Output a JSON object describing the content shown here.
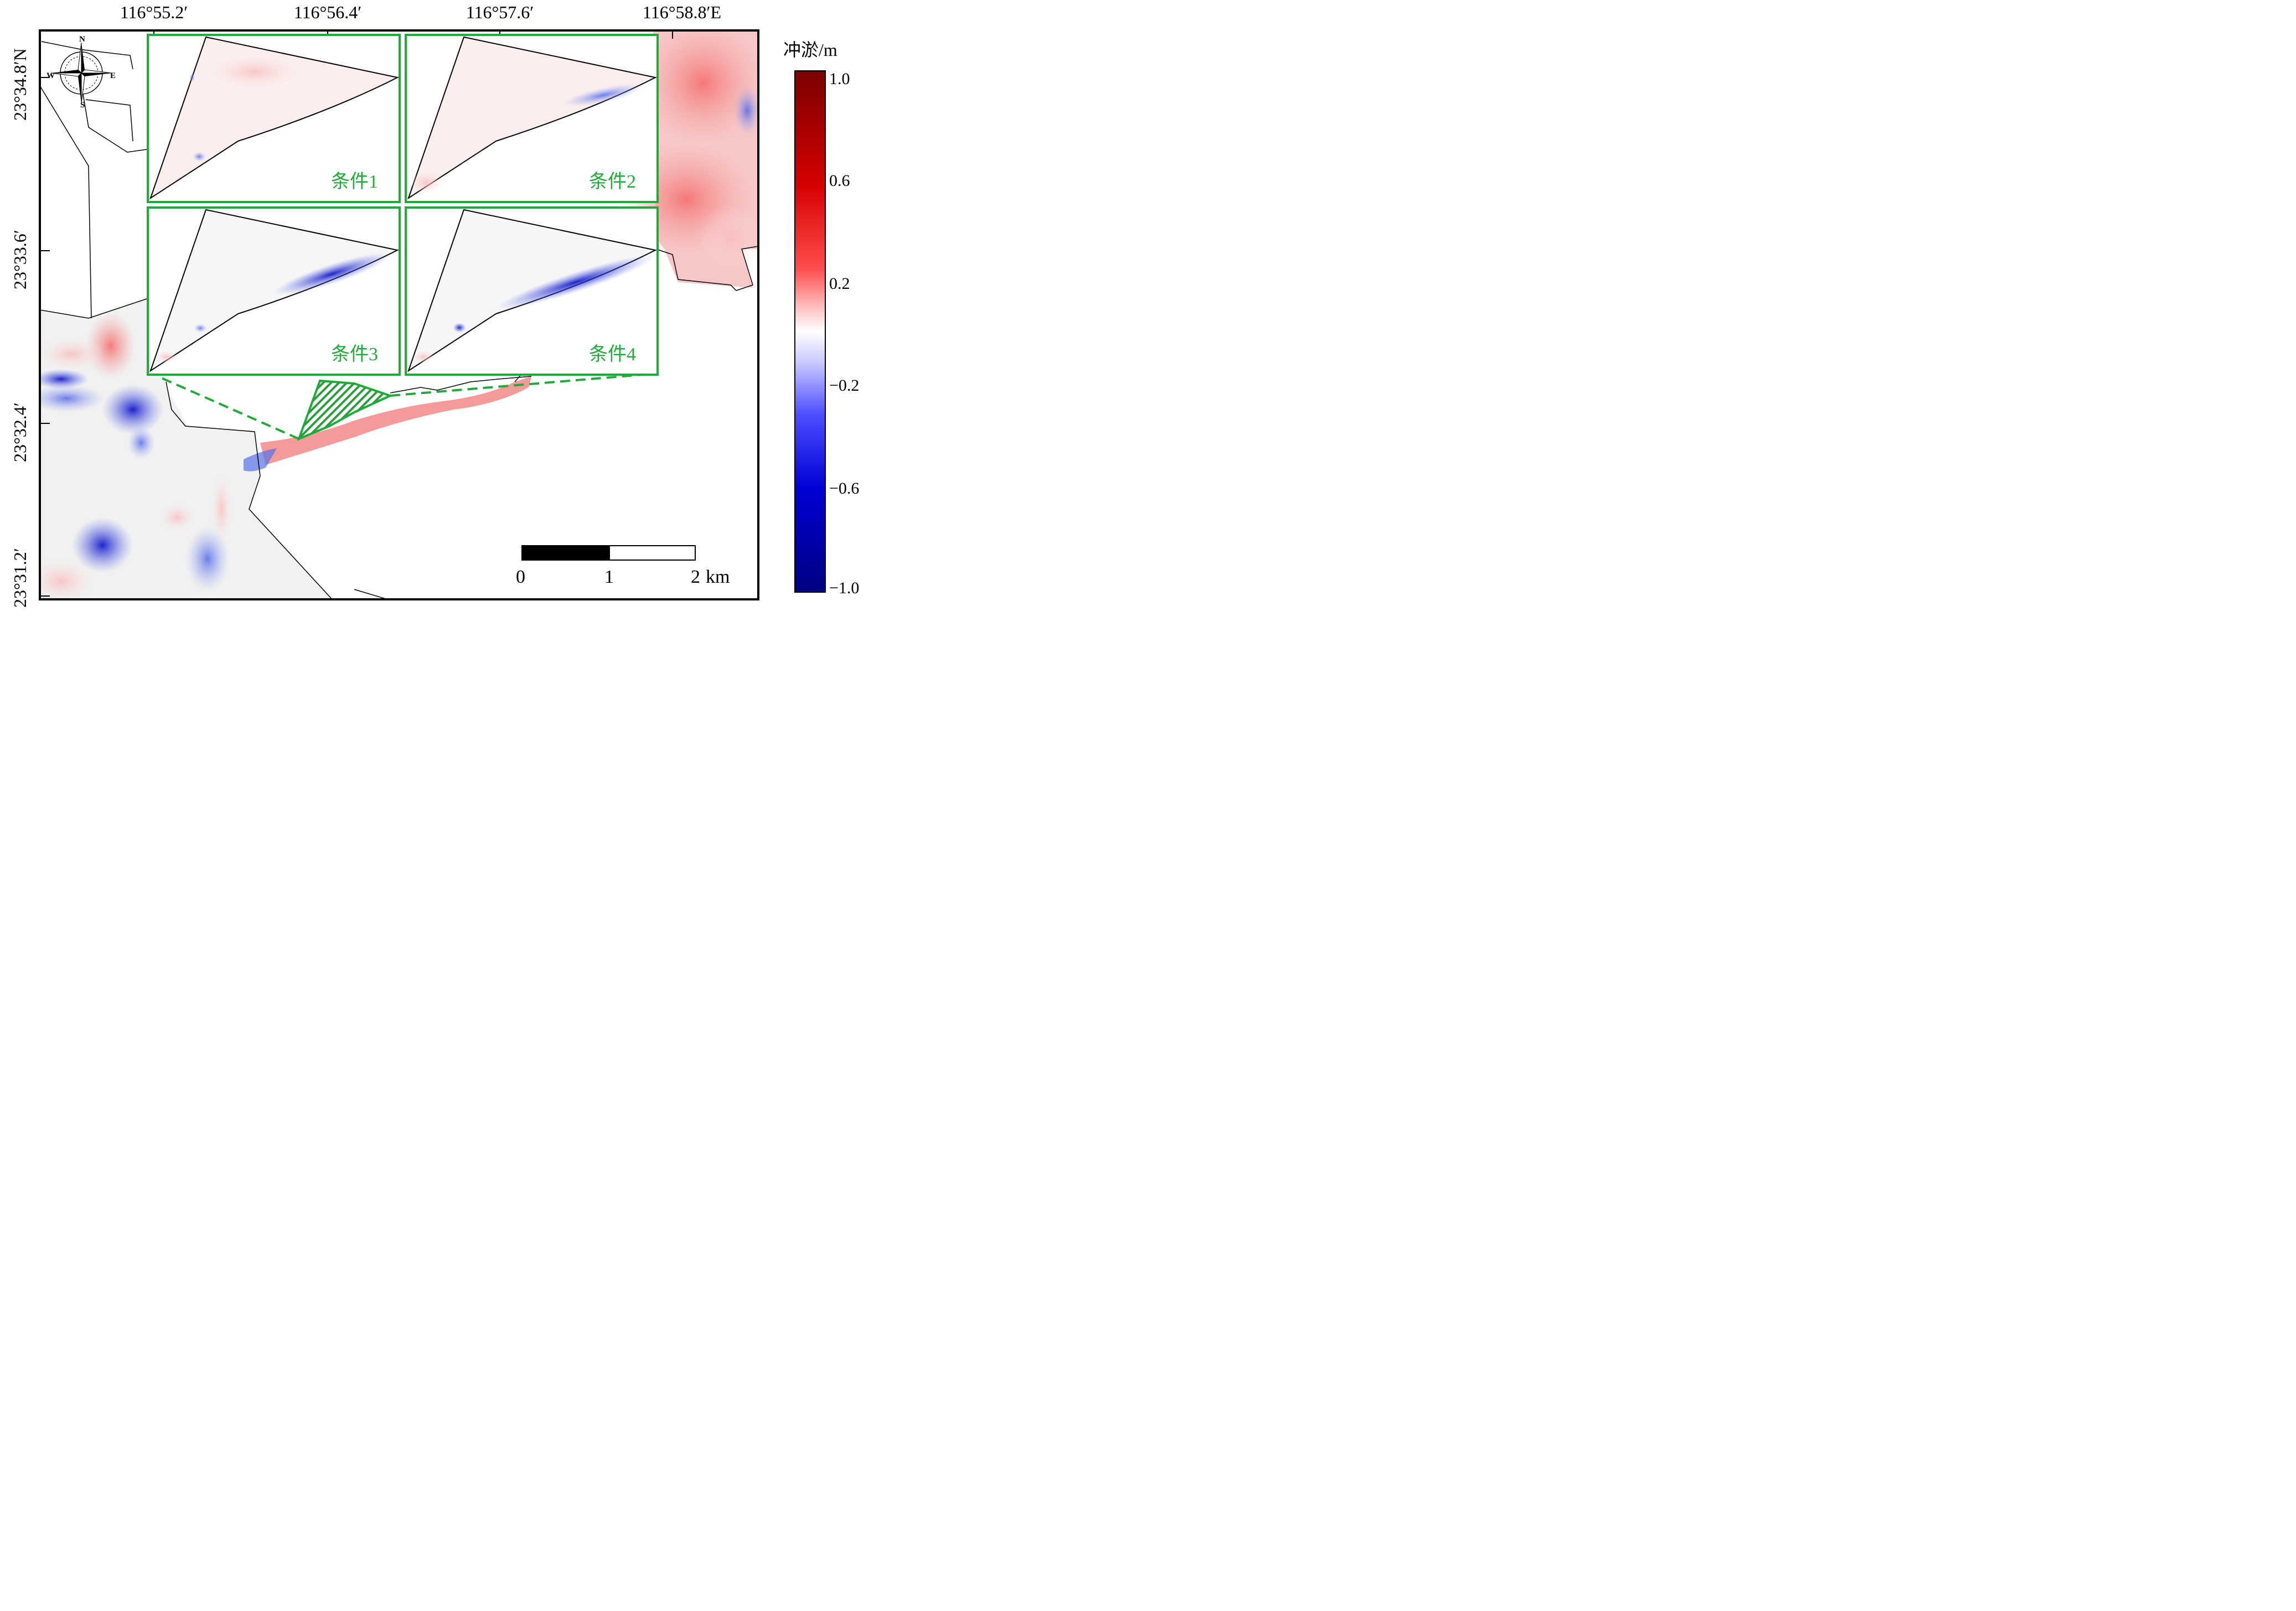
{
  "map": {
    "top_ticks": [
      "116°55.2′",
      "116°56.4′",
      "116°57.6′",
      "116°58.8′E"
    ],
    "left_ticks": [
      "23°34.8′N",
      "23°33.6′",
      "23°32.4′",
      "23°31.2′"
    ],
    "compass": {
      "n": "N",
      "s": "S",
      "e": "E",
      "w": "W"
    }
  },
  "colorbar": {
    "title": "冲淤/m",
    "ticks": [
      "1.0",
      "0.6",
      "0.2",
      "−0.2",
      "−0.6",
      "−1.0"
    ],
    "color_high": "#7a0000",
    "color_mid": "#ffffff",
    "color_low": "#000080"
  },
  "insets": [
    {
      "label": "条件1"
    },
    {
      "label": "条件2"
    },
    {
      "label": "条件3"
    },
    {
      "label": "条件4"
    }
  ],
  "scalebar": {
    "labels": [
      "0",
      "1",
      "2"
    ],
    "unit": "km"
  },
  "colors": {
    "inset_border": "#1faa3a",
    "erosion": "#1f3cd6",
    "deposition": "#f28a8a"
  }
}
